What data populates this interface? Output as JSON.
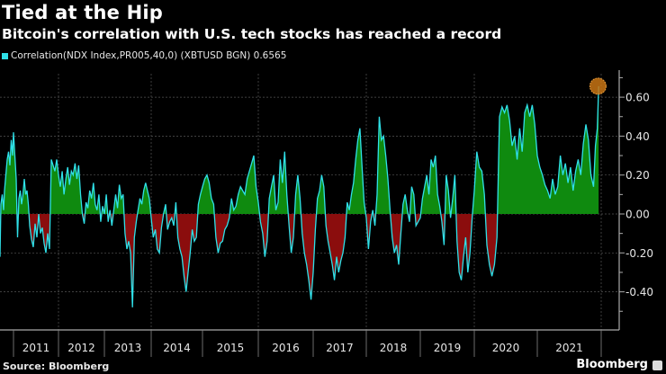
{
  "header": {
    "title": "Tied at the Hip",
    "subtitle": "Bitcoin's correlation with U.S. tech stocks has reached a record"
  },
  "footer": {
    "source": "Source: Bloomberg",
    "brand": "Bloomberg"
  },
  "colors": {
    "line": "#2fe0e8",
    "positive_fill": "#0f8a0f",
    "negative_fill": "#8b0d0d",
    "highlight": "#c87414"
  },
  "chart_data": {
    "type": "area",
    "title": "Tied at the Hip",
    "subtitle": "Bitcoin's correlation with U.S. tech stocks has reached a record",
    "legend": [
      {
        "name": "Correlation(NDX Index,PR005,40,0) (XBTUSD BGN) 0.6565",
        "color": "#2fe0e8"
      }
    ],
    "legend_placement": "top-left",
    "xlabel": "",
    "ylabel": "",
    "ylim": [
      -0.58,
      0.74
    ],
    "yticks": [
      0.6,
      0.4,
      0.2,
      0.0,
      -0.2,
      -0.4
    ],
    "ytick_labels": [
      "0.60",
      "0.40",
      "0.20",
      "0.00",
      "-0.20",
      "-0.40"
    ],
    "x_categories": [
      "2011",
      "2012",
      "2013",
      "2014",
      "2015",
      "2016",
      "2017",
      "2018",
      "2019",
      "2020",
      "2021"
    ],
    "grid": true,
    "last_value": 0.6565,
    "highlight_point": {
      "x": 2021.95,
      "y": 0.6565
    },
    "series": [
      {
        "name": "Correlation(NDX Index,PR005,40,0) (XBTUSD BGN)",
        "points": [
          [
            2010.7,
            -0.22
          ],
          [
            2010.72,
            0.05
          ],
          [
            2010.75,
            0.1
          ],
          [
            2010.78,
            0.02
          ],
          [
            2010.8,
            0.12
          ],
          [
            2010.83,
            0.2
          ],
          [
            2010.86,
            0.28
          ],
          [
            2010.89,
            0.32
          ],
          [
            2010.92,
            0.25
          ],
          [
            2010.95,
            0.38
          ],
          [
            2010.98,
            0.3
          ],
          [
            2011.0,
            0.42
          ],
          [
            2011.03,
            0.3
          ],
          [
            2011.06,
            0.18
          ],
          [
            2011.09,
            -0.12
          ],
          [
            2011.12,
            0.08
          ],
          [
            2011.15,
            0.12
          ],
          [
            2011.18,
            0.05
          ],
          [
            2011.21,
            0.1
          ],
          [
            2011.24,
            0.18
          ],
          [
            2011.27,
            0.1
          ],
          [
            2011.3,
            0.12
          ],
          [
            2011.33,
            0.05
          ],
          [
            2011.36,
            -0.06
          ],
          [
            2011.4,
            -0.13
          ],
          [
            2011.44,
            -0.17
          ],
          [
            2011.48,
            -0.05
          ],
          [
            2011.52,
            -0.12
          ],
          [
            2011.56,
            0.0
          ],
          [
            2011.6,
            -0.1
          ],
          [
            2011.64,
            -0.07
          ],
          [
            2011.68,
            -0.15
          ],
          [
            2011.72,
            -0.2
          ],
          [
            2011.76,
            -0.1
          ],
          [
            2011.8,
            -0.18
          ],
          [
            2011.84,
            0.28
          ],
          [
            2011.88,
            0.25
          ],
          [
            2011.92,
            0.22
          ],
          [
            2011.96,
            0.28
          ],
          [
            2012.0,
            0.2
          ],
          [
            2012.04,
            0.14
          ],
          [
            2012.08,
            0.22
          ],
          [
            2012.12,
            0.1
          ],
          [
            2012.16,
            0.18
          ],
          [
            2012.2,
            0.24
          ],
          [
            2012.24,
            0.15
          ],
          [
            2012.28,
            0.22
          ],
          [
            2012.32,
            0.2
          ],
          [
            2012.36,
            0.26
          ],
          [
            2012.4,
            0.18
          ],
          [
            2012.44,
            0.25
          ],
          [
            2012.48,
            0.1
          ],
          [
            2012.52,
            0.0
          ],
          [
            2012.56,
            -0.05
          ],
          [
            2012.6,
            0.06
          ],
          [
            2012.64,
            0.03
          ],
          [
            2012.68,
            0.12
          ],
          [
            2012.72,
            0.08
          ],
          [
            2012.76,
            0.16
          ],
          [
            2012.8,
            0.05
          ],
          [
            2012.84,
            0.02
          ],
          [
            2012.88,
            0.1
          ],
          [
            2012.92,
            -0.04
          ],
          [
            2012.96,
            0.04
          ],
          [
            2013.0,
            0.0
          ],
          [
            2013.04,
            0.1
          ],
          [
            2013.08,
            -0.04
          ],
          [
            2013.12,
            0.02
          ],
          [
            2013.16,
            -0.06
          ],
          [
            2013.2,
            0.02
          ],
          [
            2013.24,
            0.1
          ],
          [
            2013.28,
            0.03
          ],
          [
            2013.32,
            0.15
          ],
          [
            2013.36,
            0.08
          ],
          [
            2013.4,
            0.1
          ],
          [
            2013.44,
            -0.1
          ],
          [
            2013.48,
            -0.18
          ],
          [
            2013.52,
            -0.14
          ],
          [
            2013.56,
            -0.2
          ],
          [
            2013.6,
            -0.48
          ],
          [
            2013.64,
            -0.12
          ],
          [
            2013.68,
            -0.04
          ],
          [
            2013.72,
            0.02
          ],
          [
            2013.76,
            0.08
          ],
          [
            2013.8,
            0.05
          ],
          [
            2013.84,
            0.12
          ],
          [
            2013.88,
            0.16
          ],
          [
            2013.92,
            0.12
          ],
          [
            2013.96,
            0.08
          ],
          [
            2014.0,
            -0.02
          ],
          [
            2014.04,
            -0.12
          ],
          [
            2014.08,
            -0.08
          ],
          [
            2014.12,
            -0.18
          ],
          [
            2014.16,
            -0.2
          ],
          [
            2014.2,
            -0.07
          ],
          [
            2014.24,
            0.0
          ],
          [
            2014.28,
            0.05
          ],
          [
            2014.32,
            -0.08
          ],
          [
            2014.36,
            -0.04
          ],
          [
            2014.4,
            -0.02
          ],
          [
            2014.44,
            -0.06
          ],
          [
            2014.48,
            0.06
          ],
          [
            2014.52,
            -0.12
          ],
          [
            2014.56,
            -0.18
          ],
          [
            2014.6,
            -0.22
          ],
          [
            2014.64,
            -0.32
          ],
          [
            2014.68,
            -0.4
          ],
          [
            2014.72,
            -0.3
          ],
          [
            2014.76,
            -0.2
          ],
          [
            2014.8,
            -0.08
          ],
          [
            2014.84,
            -0.14
          ],
          [
            2014.88,
            -0.12
          ],
          [
            2014.92,
            0.05
          ],
          [
            2014.96,
            0.1
          ],
          [
            2015.0,
            0.14
          ],
          [
            2015.04,
            0.18
          ],
          [
            2015.08,
            0.2
          ],
          [
            2015.12,
            0.16
          ],
          [
            2015.16,
            0.08
          ],
          [
            2015.2,
            0.05
          ],
          [
            2015.24,
            -0.12
          ],
          [
            2015.28,
            -0.2
          ],
          [
            2015.32,
            -0.15
          ],
          [
            2015.36,
            -0.14
          ],
          [
            2015.4,
            -0.08
          ],
          [
            2015.44,
            -0.06
          ],
          [
            2015.48,
            -0.02
          ],
          [
            2015.52,
            0.08
          ],
          [
            2015.56,
            0.02
          ],
          [
            2015.6,
            0.04
          ],
          [
            2015.64,
            0.1
          ],
          [
            2015.68,
            0.14
          ],
          [
            2015.72,
            0.12
          ],
          [
            2015.76,
            0.1
          ],
          [
            2015.8,
            0.18
          ],
          [
            2015.84,
            0.22
          ],
          [
            2015.88,
            0.26
          ],
          [
            2015.92,
            0.3
          ],
          [
            2015.96,
            0.14
          ],
          [
            2016.0,
            0.06
          ],
          [
            2016.04,
            -0.04
          ],
          [
            2016.08,
            -0.1
          ],
          [
            2016.12,
            -0.22
          ],
          [
            2016.16,
            -0.14
          ],
          [
            2016.2,
            0.08
          ],
          [
            2016.24,
            0.14
          ],
          [
            2016.28,
            0.2
          ],
          [
            2016.32,
            0.02
          ],
          [
            2016.36,
            0.06
          ],
          [
            2016.4,
            0.28
          ],
          [
            2016.44,
            0.16
          ],
          [
            2016.48,
            0.32
          ],
          [
            2016.52,
            0.1
          ],
          [
            2016.56,
            -0.06
          ],
          [
            2016.6,
            -0.2
          ],
          [
            2016.64,
            -0.12
          ],
          [
            2016.68,
            0.1
          ],
          [
            2016.72,
            0.2
          ],
          [
            2016.76,
            0.08
          ],
          [
            2016.8,
            -0.1
          ],
          [
            2016.84,
            -0.2
          ],
          [
            2016.88,
            -0.26
          ],
          [
            2016.92,
            -0.34
          ],
          [
            2016.96,
            -0.44
          ],
          [
            2017.0,
            -0.3
          ],
          [
            2017.04,
            -0.08
          ],
          [
            2017.08,
            0.08
          ],
          [
            2017.12,
            0.12
          ],
          [
            2017.16,
            0.2
          ],
          [
            2017.2,
            0.14
          ],
          [
            2017.24,
            -0.06
          ],
          [
            2017.28,
            -0.14
          ],
          [
            2017.32,
            -0.2
          ],
          [
            2017.36,
            -0.26
          ],
          [
            2017.4,
            -0.34
          ],
          [
            2017.44,
            -0.22
          ],
          [
            2017.48,
            -0.3
          ],
          [
            2017.52,
            -0.24
          ],
          [
            2017.56,
            -0.2
          ],
          [
            2017.6,
            -0.12
          ],
          [
            2017.64,
            0.06
          ],
          [
            2017.68,
            0.02
          ],
          [
            2017.72,
            0.1
          ],
          [
            2017.76,
            0.16
          ],
          [
            2017.8,
            0.28
          ],
          [
            2017.84,
            0.38
          ],
          [
            2017.88,
            0.44
          ],
          [
            2017.92,
            0.24
          ],
          [
            2017.96,
            0.06
          ],
          [
            2018.0,
            -0.02
          ],
          [
            2018.04,
            -0.18
          ],
          [
            2018.08,
            -0.04
          ],
          [
            2018.12,
            0.02
          ],
          [
            2018.16,
            -0.06
          ],
          [
            2018.2,
            0.1
          ],
          [
            2018.24,
            0.5
          ],
          [
            2018.28,
            0.38
          ],
          [
            2018.32,
            0.4
          ],
          [
            2018.36,
            0.3
          ],
          [
            2018.4,
            0.18
          ],
          [
            2018.44,
            0.02
          ],
          [
            2018.48,
            -0.12
          ],
          [
            2018.52,
            -0.2
          ],
          [
            2018.56,
            -0.16
          ],
          [
            2018.6,
            -0.26
          ],
          [
            2018.64,
            -0.1
          ],
          [
            2018.68,
            0.05
          ],
          [
            2018.72,
            0.1
          ],
          [
            2018.76,
            0.02
          ],
          [
            2018.8,
            -0.04
          ],
          [
            2018.84,
            0.14
          ],
          [
            2018.88,
            0.1
          ],
          [
            2018.92,
            -0.06
          ],
          [
            2018.96,
            -0.04
          ],
          [
            2019.0,
            -0.02
          ],
          [
            2019.04,
            0.08
          ],
          [
            2019.08,
            0.14
          ],
          [
            2019.12,
            0.2
          ],
          [
            2019.16,
            0.1
          ],
          [
            2019.2,
            0.28
          ],
          [
            2019.24,
            0.24
          ],
          [
            2019.28,
            0.3
          ],
          [
            2019.32,
            0.1
          ],
          [
            2019.36,
            0.04
          ],
          [
            2019.4,
            -0.04
          ],
          [
            2019.44,
            -0.16
          ],
          [
            2019.48,
            0.2
          ],
          [
            2019.52,
            0.12
          ],
          [
            2019.56,
            -0.02
          ],
          [
            2019.6,
            0.08
          ],
          [
            2019.64,
            0.2
          ],
          [
            2019.68,
            -0.14
          ],
          [
            2019.72,
            -0.3
          ],
          [
            2019.76,
            -0.34
          ],
          [
            2019.8,
            -0.22
          ],
          [
            2019.84,
            -0.12
          ],
          [
            2019.88,
            -0.3
          ],
          [
            2019.92,
            -0.2
          ],
          [
            2019.96,
            -0.02
          ],
          [
            2020.0,
            0.12
          ],
          [
            2020.04,
            0.32
          ],
          [
            2020.08,
            0.24
          ],
          [
            2020.12,
            0.22
          ],
          [
            2020.16,
            0.1
          ],
          [
            2020.2,
            -0.16
          ],
          [
            2020.24,
            -0.26
          ],
          [
            2020.28,
            -0.32
          ],
          [
            2020.32,
            -0.26
          ],
          [
            2020.36,
            -0.12
          ],
          [
            2020.4,
            0.5
          ],
          [
            2020.44,
            0.55
          ],
          [
            2020.48,
            0.52
          ],
          [
            2020.52,
            0.56
          ],
          [
            2020.56,
            0.48
          ],
          [
            2020.6,
            0.35
          ],
          [
            2020.64,
            0.4
          ],
          [
            2020.68,
            0.28
          ],
          [
            2020.72,
            0.44
          ],
          [
            2020.76,
            0.32
          ],
          [
            2020.8,
            0.52
          ],
          [
            2020.84,
            0.56
          ],
          [
            2020.88,
            0.5
          ],
          [
            2020.92,
            0.56
          ],
          [
            2020.96,
            0.46
          ],
          [
            2021.0,
            0.3
          ],
          [
            2021.04,
            0.24
          ],
          [
            2021.08,
            0.2
          ],
          [
            2021.12,
            0.15
          ],
          [
            2021.16,
            0.12
          ],
          [
            2021.2,
            0.08
          ],
          [
            2021.24,
            0.18
          ],
          [
            2021.28,
            0.1
          ],
          [
            2021.32,
            0.14
          ],
          [
            2021.36,
            0.3
          ],
          [
            2021.4,
            0.2
          ],
          [
            2021.44,
            0.26
          ],
          [
            2021.48,
            0.16
          ],
          [
            2021.52,
            0.24
          ],
          [
            2021.56,
            0.12
          ],
          [
            2021.6,
            0.22
          ],
          [
            2021.64,
            0.28
          ],
          [
            2021.68,
            0.2
          ],
          [
            2021.72,
            0.36
          ],
          [
            2021.76,
            0.46
          ],
          [
            2021.8,
            0.38
          ],
          [
            2021.84,
            0.2
          ],
          [
            2021.88,
            0.14
          ],
          [
            2021.91,
            0.35
          ],
          [
            2021.94,
            0.44
          ],
          [
            2021.96,
            0.6565
          ]
        ]
      }
    ]
  }
}
